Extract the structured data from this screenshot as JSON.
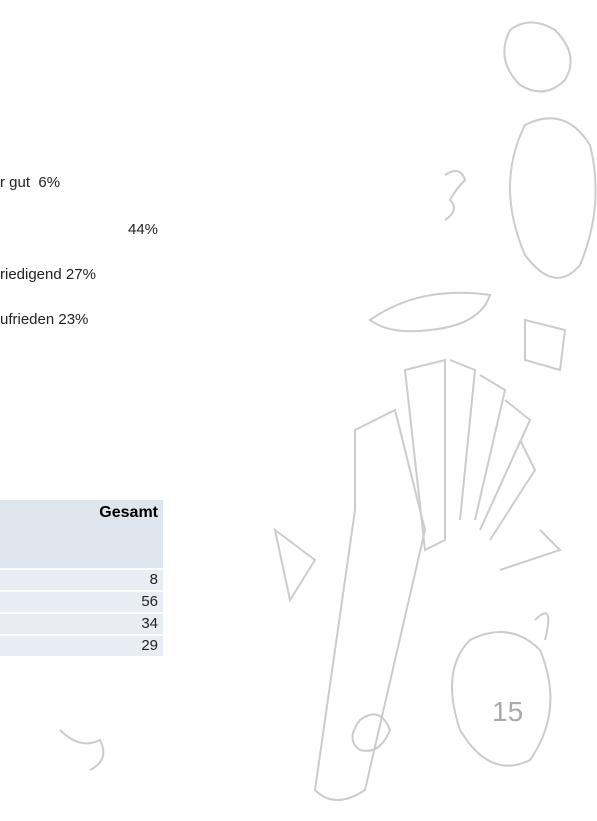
{
  "legend": {
    "items": [
      "r gut  6%",
      "44%",
      "riedigend 27%",
      "ufrieden 23%"
    ]
  },
  "table": {
    "header": "Gesamt",
    "rows": [
      8,
      56,
      34,
      29
    ]
  },
  "page_number": "15"
}
